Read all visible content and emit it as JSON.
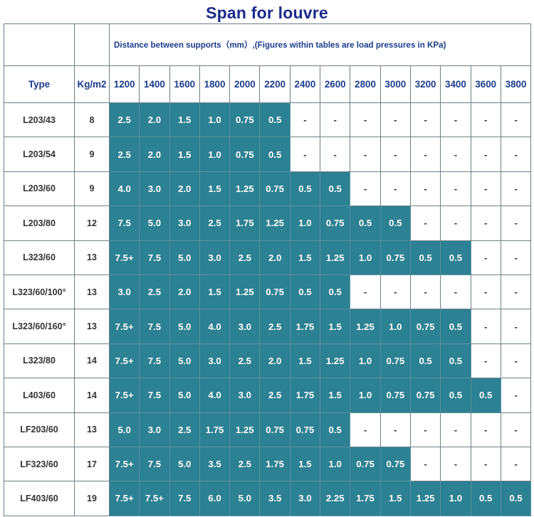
{
  "title": "Span for louvre",
  "header": {
    "note": "Distance between supports（mm）,(Figures within tables are load pressures in KPa)",
    "type_label": "Type",
    "kg_label": "Kg/m2",
    "distances": [
      "1200",
      "1400",
      "1600",
      "1800",
      "2000",
      "2200",
      "2400",
      "2600",
      "2800",
      "3000",
      "3200",
      "3400",
      "3600",
      "3800"
    ]
  },
  "rows": [
    {
      "type": "L203/43",
      "kg": "8",
      "values": [
        "2.5",
        "2.0",
        "1.5",
        "1.0",
        "0.75",
        "0.5",
        "-",
        "-",
        "-",
        "-",
        "-",
        "-",
        "-",
        "-"
      ]
    },
    {
      "type": "L203/54",
      "kg": "9",
      "values": [
        "2.5",
        "2.0",
        "1.5",
        "1.0",
        "0.75",
        "0.5",
        "-",
        "-",
        "-",
        "-",
        "-",
        "-",
        "-",
        "-"
      ]
    },
    {
      "type": "L203/60",
      "kg": "9",
      "values": [
        "4.0",
        "3.0",
        "2.0",
        "1.5",
        "1.25",
        "0.75",
        "0.5",
        "0.5",
        "-",
        "-",
        "-",
        "-",
        "-",
        "-"
      ]
    },
    {
      "type": "L203/80",
      "kg": "12",
      "values": [
        "7.5",
        "5.0",
        "3.0",
        "2.5",
        "1.75",
        "1.25",
        "1.0",
        "0.75",
        "0.5",
        "0.5",
        "-",
        "-",
        "-",
        "-"
      ]
    },
    {
      "type": "L323/60",
      "kg": "13",
      "values": [
        "7.5+",
        "7.5",
        "5.0",
        "3.0",
        "2.5",
        "2.0",
        "1.5",
        "1.25",
        "1.0",
        "0.75",
        "0.5",
        "0.5",
        "-",
        "-"
      ]
    },
    {
      "type": "L323/60/100°",
      "kg": "13",
      "values": [
        "3.0",
        "2.5",
        "2.0",
        "1.5",
        "1.25",
        "0.75",
        "0.5",
        "0.5",
        "-",
        "-",
        "-",
        "-",
        "-",
        "-"
      ]
    },
    {
      "type": "L323/60/160°",
      "kg": "13",
      "values": [
        "7.5+",
        "7.5",
        "5.0",
        "4.0",
        "3.0",
        "2.5",
        "1.75",
        "1.5",
        "1.25",
        "1.0",
        "0.75",
        "0.5",
        "-",
        "-"
      ]
    },
    {
      "type": "L323/80",
      "kg": "14",
      "values": [
        "7.5+",
        "7.5",
        "5.0",
        "3.0",
        "2.5",
        "2.0",
        "1.5",
        "1.25",
        "1.0",
        "0.75",
        "0.5",
        "0.5",
        "-",
        "-"
      ]
    },
    {
      "type": "L403/60",
      "kg": "14",
      "values": [
        "7.5+",
        "7.5",
        "5.0",
        "4.0",
        "3.0",
        "2.5",
        "1.75",
        "1.5",
        "1.0",
        "0.75",
        "0.75",
        "0.5",
        "0.5",
        "-"
      ]
    },
    {
      "type": "LF203/60",
      "kg": "13",
      "values": [
        "5.0",
        "3.0",
        "2.5",
        "1.75",
        "1.25",
        "0.75",
        "0.75",
        "0.5",
        "-",
        "-",
        "-",
        "-",
        "-",
        "-"
      ]
    },
    {
      "type": "LF323/60",
      "kg": "17",
      "values": [
        "7.5+",
        "7.5",
        "5.0",
        "3.5",
        "2.5",
        "1.75",
        "1.5",
        "1.0",
        "0.75",
        "0.75",
        "-",
        "-",
        "-",
        "-"
      ]
    },
    {
      "type": "LF403/60",
      "kg": "19",
      "values": [
        "7.5+",
        "7.5+",
        "7.5",
        "6.0",
        "5.0",
        "3.5",
        "3.0",
        "2.25",
        "1.75",
        "1.5",
        "1.25",
        "1.0",
        "0.5",
        "0.5"
      ]
    }
  ],
  "colors": {
    "title": "#1a2a8c",
    "header_text": "#1a3c8c",
    "filled_cell": "#2c8193",
    "filled_text": "#ffffff",
    "grid": "#6e7f86"
  }
}
